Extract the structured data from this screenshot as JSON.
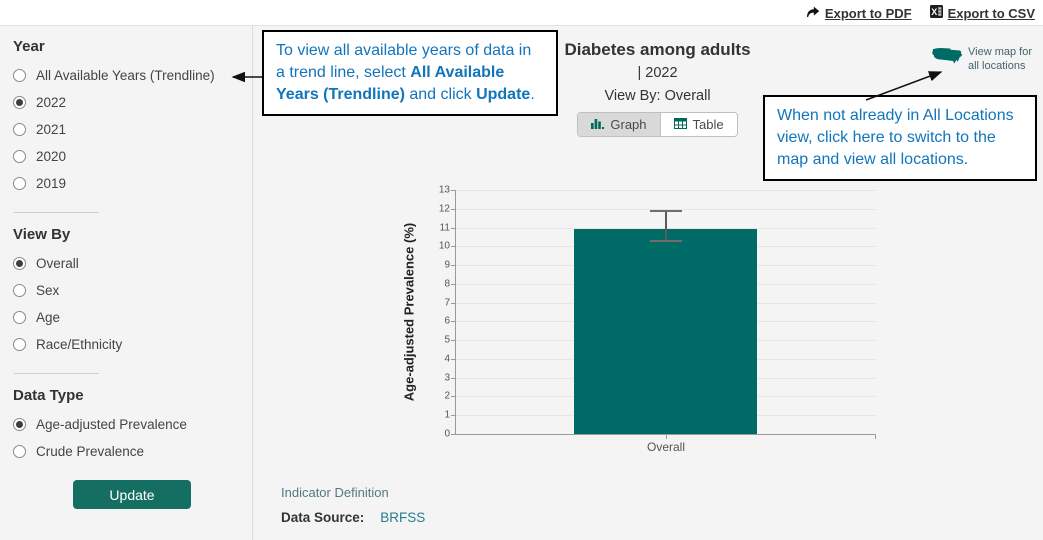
{
  "colors": {
    "bar_teal": "#006b66",
    "button_teal": "#156e62",
    "callout_blue": "#1175bc",
    "link_teal": "#2b7a8f",
    "muted_teal": "#527a85",
    "page_gray": "#f4f4f4"
  },
  "topbar": {
    "export_pdf": "Export to PDF",
    "export_csv": "Export to CSV"
  },
  "sidebar": {
    "year": {
      "heading": "Year",
      "options": [
        {
          "label": "All Available Years (Trendline)",
          "selected": false
        },
        {
          "label": "2022",
          "selected": true
        },
        {
          "label": "2021",
          "selected": false
        },
        {
          "label": "2020",
          "selected": false
        },
        {
          "label": "2019",
          "selected": false
        }
      ]
    },
    "view_by": {
      "heading": "View By",
      "options": [
        {
          "label": "Overall",
          "selected": true
        },
        {
          "label": "Sex",
          "selected": false
        },
        {
          "label": "Age",
          "selected": false
        },
        {
          "label": "Race/Ethnicity",
          "selected": false
        }
      ]
    },
    "data_type": {
      "heading": "Data Type",
      "options": [
        {
          "label": "Age-adjusted Prevalence",
          "selected": true
        },
        {
          "label": "Crude Prevalence",
          "selected": false
        }
      ]
    },
    "update_button": "Update"
  },
  "chart_header": {
    "title": "Diabetes among adults",
    "year_line": "| 2022",
    "view_by_line": "View By: Overall",
    "graph_button": "Graph",
    "table_button": "Table"
  },
  "map_link": {
    "label_line1": "View map for",
    "label_line2": "all locations"
  },
  "callout_trendline": {
    "segments": [
      {
        "text": "To view all available years of data in a trend line, select ",
        "bold": false
      },
      {
        "text": "All Available Years (Trendline)",
        "bold": true
      },
      {
        "text": " and click ",
        "bold": false
      },
      {
        "text": "Update",
        "bold": true
      },
      {
        "text": ".",
        "bold": false
      }
    ]
  },
  "callout_map": {
    "text": "When not already in All Locations view, click here to switch to the map and view all locations."
  },
  "chart_data": {
    "type": "bar",
    "title": "Diabetes among adults | 2022",
    "view_by": "Overall",
    "categories": [
      "Overall"
    ],
    "values": [
      10.9
    ],
    "error_bars": [
      {
        "low": 10.3,
        "high": 11.9
      }
    ],
    "xlabel": "",
    "ylabel": "Age-adjusted Prevalence (%)",
    "ylim": [
      0,
      13
    ],
    "ytick_step": 1,
    "grid": true,
    "legend": false,
    "bar_color": "#006b66"
  },
  "footer": {
    "indicator_definition": "Indicator Definition",
    "data_source_label": "Data Source:",
    "data_source_value": "BRFSS"
  }
}
